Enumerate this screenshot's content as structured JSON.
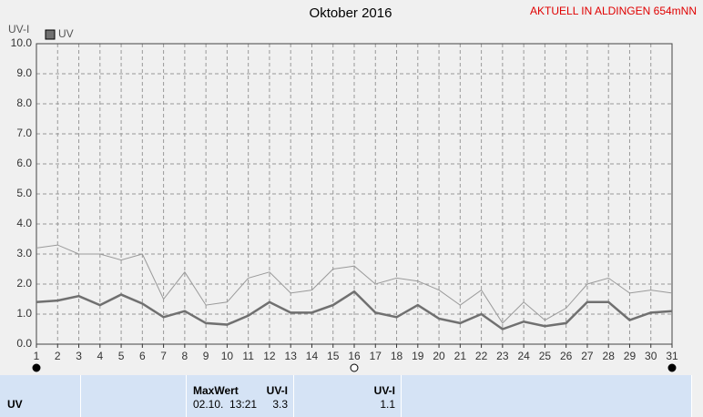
{
  "chart_data": {
    "type": "line",
    "title": "Oktober 2016",
    "subtitle": "AKTUELL IN ALDINGEN 654mNN",
    "y_label": "UV-I",
    "x": [
      1,
      2,
      3,
      4,
      5,
      6,
      7,
      8,
      9,
      10,
      11,
      12,
      13,
      14,
      15,
      16,
      17,
      18,
      19,
      20,
      21,
      22,
      23,
      24,
      25,
      26,
      27,
      28,
      29,
      30,
      31
    ],
    "series": [
      {
        "name": "UV",
        "color": "#707070",
        "values": [
          1.4,
          1.45,
          1.6,
          1.3,
          1.65,
          1.35,
          0.9,
          1.1,
          0.7,
          0.65,
          0.95,
          1.4,
          1.05,
          1.05,
          1.3,
          1.75,
          1.05,
          0.9,
          1.3,
          0.85,
          0.7,
          1.0,
          0.5,
          0.75,
          0.6,
          0.7,
          1.4,
          1.4,
          0.8,
          1.05,
          1.1
        ]
      },
      {
        "color": "#9a9a9a",
        "values": [
          3.2,
          3.3,
          3.0,
          3.0,
          2.8,
          3.0,
          1.5,
          2.4,
          1.3,
          1.4,
          2.2,
          2.4,
          1.7,
          1.8,
          2.5,
          2.6,
          2.0,
          2.2,
          2.1,
          1.8,
          1.3,
          1.8,
          0.7,
          1.4,
          0.8,
          1.2,
          2.0,
          2.2,
          1.7,
          1.8,
          1.7
        ]
      }
    ],
    "xlim": [
      1,
      31
    ],
    "xticks": [
      1,
      2,
      3,
      4,
      5,
      6,
      7,
      8,
      9,
      10,
      11,
      12,
      13,
      14,
      15,
      16,
      17,
      18,
      19,
      20,
      21,
      22,
      23,
      24,
      25,
      26,
      27,
      28,
      29,
      30,
      31
    ],
    "ylim": [
      0,
      10
    ],
    "yticks": [
      {
        "value": 0,
        "label": "0.0"
      },
      {
        "value": 1,
        "label": "1.0"
      },
      {
        "value": 2,
        "label": "2.0"
      },
      {
        "value": 3,
        "label": "3.0"
      },
      {
        "value": 4,
        "label": "4.0"
      },
      {
        "value": 5,
        "label": "5.0"
      },
      {
        "value": 6,
        "label": "6.0"
      },
      {
        "value": 7,
        "label": "7.0"
      },
      {
        "value": 8,
        "label": "8.0"
      },
      {
        "value": 9,
        "label": "9.0"
      },
      {
        "value": 10,
        "label": "10.0"
      }
    ],
    "grid": true
  },
  "table": {
    "label": "UV",
    "max_header": "MaxWert",
    "max_unit": "UV-I",
    "max_time": "02.10.  13:21",
    "max_value": "3.3",
    "current_unit": "UV-I",
    "current_value": "1.1"
  }
}
